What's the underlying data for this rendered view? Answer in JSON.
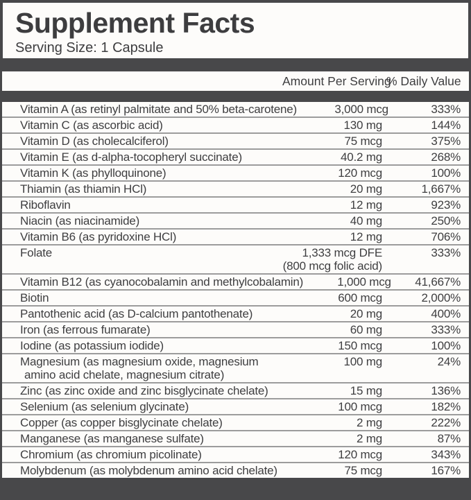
{
  "label": {
    "title": "Supplement Facts",
    "serving_size": "Serving Size: 1 Capsule",
    "columns": {
      "amount": "Amount Per Serving",
      "daily_value": "% Daily Value"
    },
    "rows": [
      {
        "name": "Vitamin A (as retinyl palmitate and 50% beta-carotene)",
        "amount": "3,000 mcg",
        "dv": "333%"
      },
      {
        "name": "Vitamin C (as ascorbic acid)",
        "amount": "130 mg",
        "dv": "144%"
      },
      {
        "name": "Vitamin D (as cholecalciferol)",
        "amount": "75 mcg",
        "dv": "375%"
      },
      {
        "name": "Vitamin E (as d-alpha-tocopheryl succinate)",
        "amount": "40.2 mg",
        "dv": "268%"
      },
      {
        "name": "Vitamin K (as phylloquinone)",
        "amount": "120 mcg",
        "dv": "100%"
      },
      {
        "name": "Thiamin (as thiamin HCl)",
        "amount": "20 mg",
        "dv": "1,667%"
      },
      {
        "name": "Riboflavin",
        "amount": "12 mg",
        "dv": "923%"
      },
      {
        "name": "Niacin (as niacinamide)",
        "amount": "40 mg",
        "dv": "250%"
      },
      {
        "name": "Vitamin B6 (as pyridoxine HCl)",
        "amount": "12 mg",
        "dv": "706%"
      },
      {
        "name": "Folate",
        "amount": "1,333 mcg DFE",
        "amount2": "(800 mcg folic acid)",
        "dv": "333%"
      },
      {
        "name": "Vitamin B12 (as cyanocobalamin and methylcobalamin)",
        "amount": "1,000 mcg",
        "dv": "41,667%"
      },
      {
        "name": "Biotin",
        "amount": "600 mcg",
        "dv": "2,000%"
      },
      {
        "name": "Pantothenic acid (as D-calcium pantothenate)",
        "amount": "20 mg",
        "dv": "400%"
      },
      {
        "name": "Iron (as ferrous fumarate)",
        "amount": "60 mg",
        "dv": "333%"
      },
      {
        "name": "Iodine (as potassium iodide)",
        "amount": "150 mcg",
        "dv": "100%"
      },
      {
        "name": "Magnesium (as magnesium oxide, magnesium",
        "name2": "amino acid chelate, magnesium citrate)",
        "amount": "100 mg",
        "dv": "24%"
      },
      {
        "name": "Zinc (as zinc oxide and zinc bisglycinate chelate)",
        "amount": "15 mg",
        "dv": "136%"
      },
      {
        "name": "Selenium (as selenium glycinate)",
        "amount": "100 mcg",
        "dv": "182%"
      },
      {
        "name": "Copper (as copper bisglycinate chelate)",
        "amount": "2 mg",
        "dv": "222%"
      },
      {
        "name": "Manganese (as manganese sulfate)",
        "amount": "2 mg",
        "dv": "87%"
      },
      {
        "name": "Chromium (as chromium picolinate)",
        "amount": "120 mcg",
        "dv": "343%"
      },
      {
        "name": "Molybdenum (as molybdenum amino acid chelate)",
        "amount": "75 mcg",
        "dv": "167%"
      }
    ],
    "colors": {
      "bar": "#48484a",
      "row_background": "#fdfcfa",
      "separator": "#9c9c9c",
      "text": "#3e3e40"
    }
  }
}
